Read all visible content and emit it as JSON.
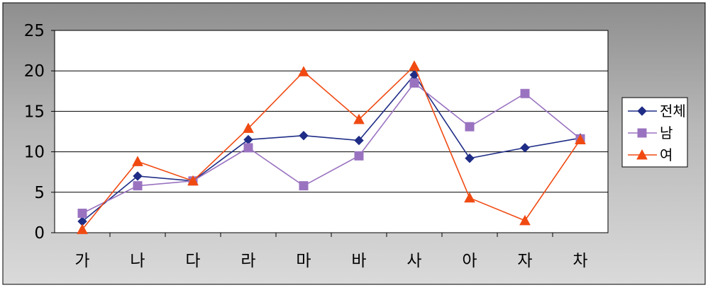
{
  "chart_data": {
    "type": "line",
    "categories": [
      "가",
      "나",
      "다",
      "라",
      "마",
      "바",
      "사",
      "아",
      "자",
      "차"
    ],
    "ylim": [
      0,
      25
    ],
    "yticks": [
      0,
      5,
      10,
      15,
      20,
      25
    ],
    "grid": true,
    "legend_position": "right",
    "series": [
      {
        "name": "전체",
        "color": "#1F2D86",
        "marker": "diamond",
        "values": [
          1.4,
          7.0,
          6.4,
          11.5,
          12.0,
          11.4,
          19.5,
          9.2,
          10.5,
          11.7
        ]
      },
      {
        "name": "남",
        "color": "#9A73C0",
        "marker": "square",
        "values": [
          2.4,
          5.8,
          6.4,
          10.5,
          5.8,
          9.5,
          18.5,
          13.1,
          17.2,
          11.6
        ]
      },
      {
        "name": "여",
        "color": "#F04A12",
        "marker": "triangle",
        "values": [
          0.4,
          8.8,
          6.4,
          12.9,
          19.9,
          14.0,
          20.6,
          4.3,
          1.5,
          11.5
        ]
      }
    ]
  }
}
